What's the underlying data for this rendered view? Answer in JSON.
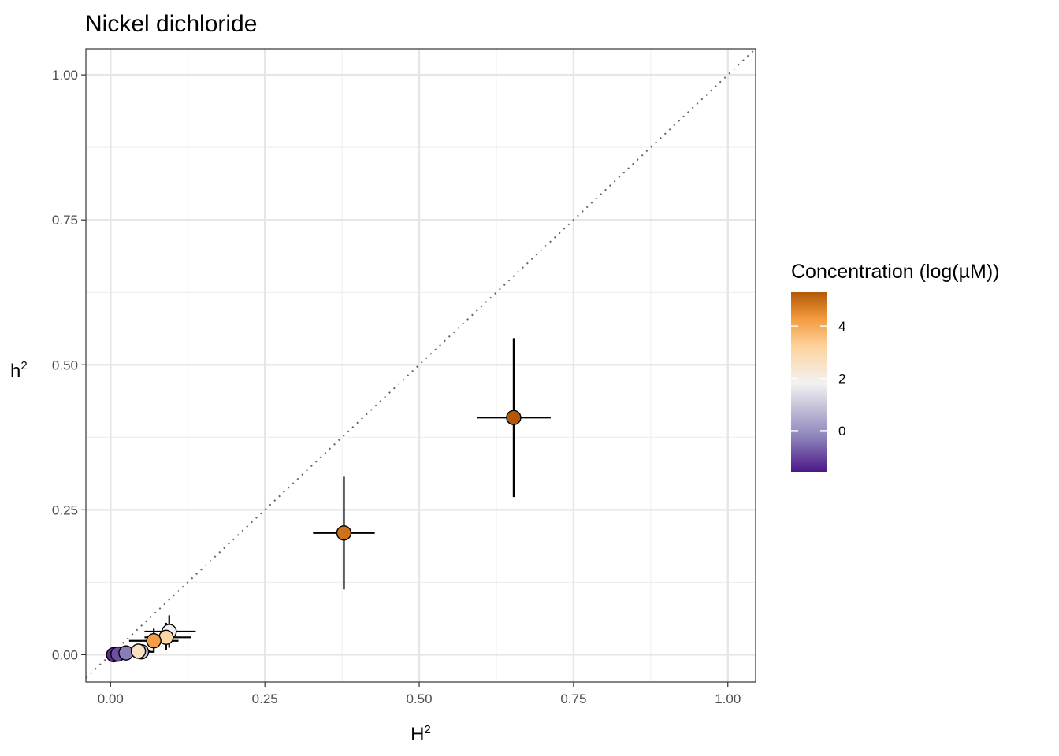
{
  "chart_data": {
    "type": "scatter",
    "title": "Nickel dichloride",
    "xlabel": "H",
    "xlabel_sup": "2",
    "ylabel": "h",
    "ylabel_sup": "2",
    "xlim": [
      -0.04,
      1.045
    ],
    "ylim": [
      -0.047,
      1.045
    ],
    "x_ticks": [
      0.0,
      0.25,
      0.5,
      0.75,
      1.0
    ],
    "x_tick_labels": [
      "0.00",
      "0.25",
      "0.50",
      "0.75",
      "1.00"
    ],
    "y_ticks": [
      0.0,
      0.25,
      0.5,
      0.75,
      1.0
    ],
    "y_tick_labels": [
      "0.00",
      "0.25",
      "0.50",
      "0.75",
      "1.00"
    ],
    "grid": true,
    "reference_line": {
      "slope": 1,
      "intercept": 0,
      "style": "dotted",
      "color": "#666666"
    },
    "points": [
      {
        "H2": 0.005,
        "h2": 0.0,
        "conc": -1.3,
        "H2_lo": 0.0,
        "H2_hi": 0.01,
        "h2_lo": 0.0,
        "h2_hi": 0.003
      },
      {
        "H2": 0.012,
        "h2": 0.001,
        "conc": -0.9,
        "H2_lo": 0.004,
        "H2_hi": 0.02,
        "h2_lo": 0.0,
        "h2_hi": 0.005
      },
      {
        "H2": 0.025,
        "h2": 0.003,
        "conc": -0.3,
        "H2_lo": 0.012,
        "H2_hi": 0.04,
        "h2_lo": 0.0,
        "h2_hi": 0.008
      },
      {
        "H2": 0.05,
        "h2": 0.005,
        "conc": 0.9,
        "H2_lo": 0.03,
        "H2_hi": 0.07,
        "h2_lo": 0.0,
        "h2_hi": 0.012
      },
      {
        "H2": 0.045,
        "h2": 0.006,
        "conc": 2.6,
        "H2_lo": 0.025,
        "H2_hi": 0.065,
        "h2_lo": 0.0,
        "h2_hi": 0.014
      },
      {
        "H2": 0.095,
        "h2": 0.04,
        "conc": 1.8,
        "H2_lo": 0.055,
        "H2_hi": 0.138,
        "h2_lo": 0.012,
        "h2_hi": 0.068
      },
      {
        "H2": 0.09,
        "h2": 0.03,
        "conc": 3.1,
        "H2_lo": 0.055,
        "H2_hi": 0.13,
        "h2_lo": 0.008,
        "h2_hi": 0.055
      },
      {
        "H2": 0.07,
        "h2": 0.024,
        "conc": 4.2,
        "H2_lo": 0.03,
        "H2_hi": 0.11,
        "h2_lo": 0.004,
        "h2_hi": 0.045
      },
      {
        "H2": 0.378,
        "h2": 0.21,
        "conc": 4.9,
        "H2_lo": 0.328,
        "H2_hi": 0.428,
        "h2_lo": 0.113,
        "h2_hi": 0.307
      },
      {
        "H2": 0.653,
        "h2": 0.409,
        "conc": 5.5,
        "H2_lo": 0.594,
        "H2_hi": 0.713,
        "h2_lo": 0.272,
        "h2_hi": 0.546
      }
    ],
    "legend": {
      "title": "Concentration (log(µM))",
      "position": "right",
      "range": [
        -1.6,
        5.3
      ],
      "ticks": [
        0,
        2,
        4
      ],
      "tick_labels": [
        "0",
        "2",
        "4"
      ],
      "gradient_stops": [
        {
          "value": -1.6,
          "color": "#4b1587"
        },
        {
          "value": -0.2,
          "color": "#8f86bd"
        },
        {
          "value": 1.8,
          "color": "#f2f2f2"
        },
        {
          "value": 3.2,
          "color": "#fdd49e"
        },
        {
          "value": 4.3,
          "color": "#f39a3e"
        },
        {
          "value": 5.3,
          "color": "#b35806"
        }
      ]
    }
  }
}
